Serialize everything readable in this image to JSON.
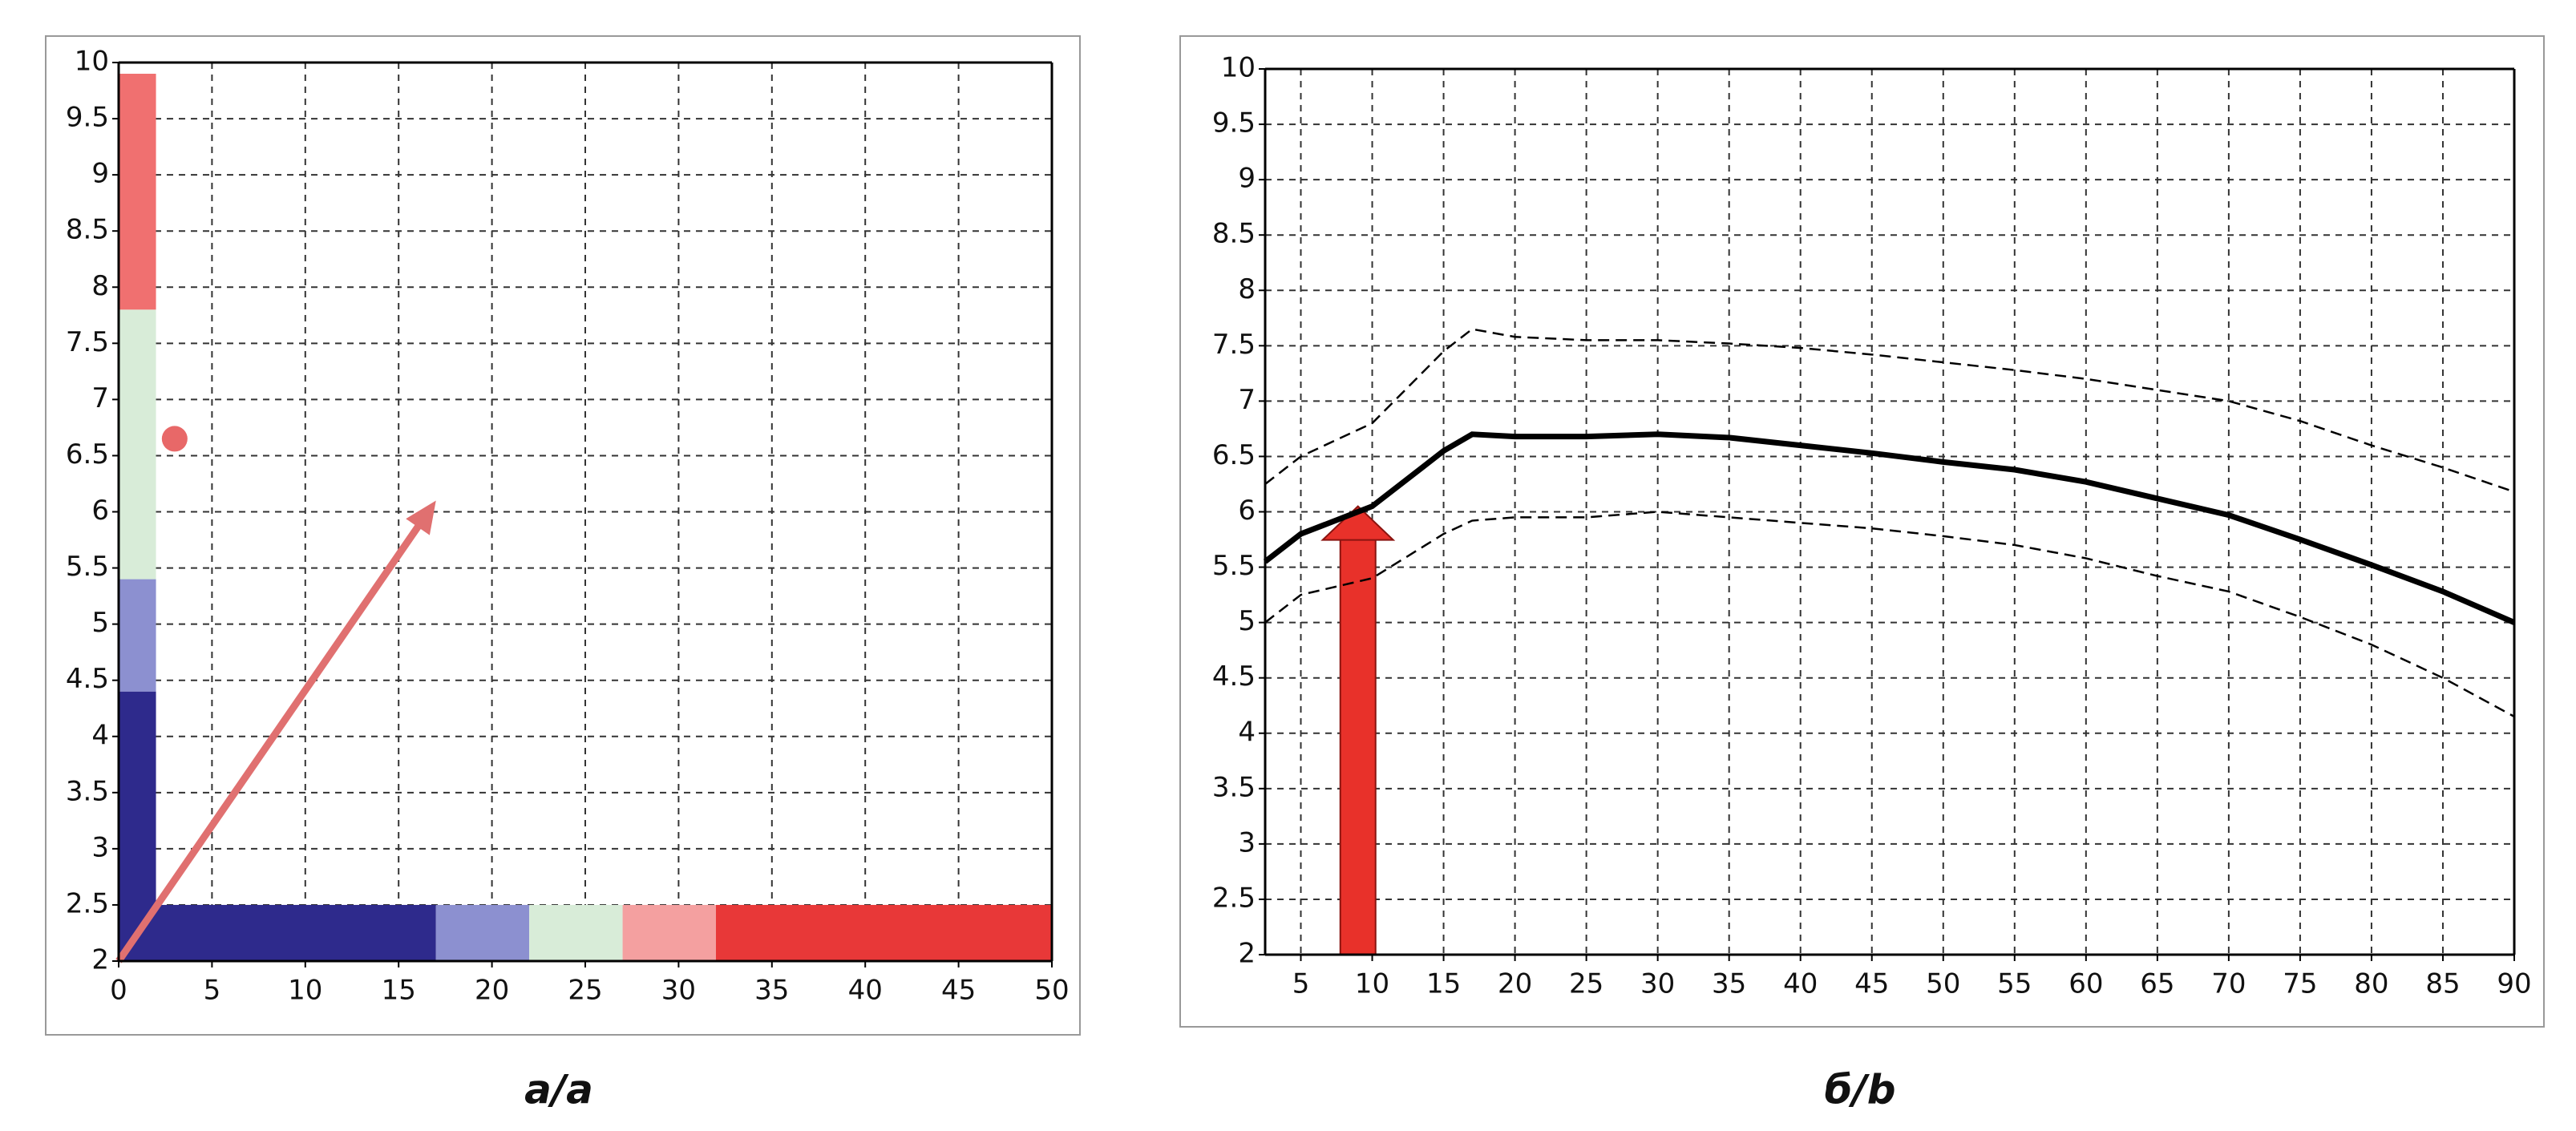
{
  "chart_data": [
    {
      "type": "range",
      "title": "а/a",
      "xlim": [
        0,
        50
      ],
      "xticks": [
        0,
        5,
        10,
        15,
        20,
        25,
        30,
        35,
        40,
        45,
        50
      ],
      "ylim": [
        2,
        10
      ],
      "yticks": [
        2,
        2.5,
        3,
        3.5,
        4,
        4.5,
        5,
        5.5,
        6,
        6.5,
        7,
        7.5,
        8,
        8.5,
        9,
        9.5,
        10
      ],
      "grid": true,
      "y_band_x": [
        0,
        2
      ],
      "y_bands": [
        {
          "color": "#2e2a8c",
          "values": [
            2,
            4.4
          ]
        },
        {
          "color": "#8c90d0",
          "values": [
            4.4,
            5.4
          ]
        },
        {
          "color": "#d8ecd8",
          "values": [
            5.4,
            7.8
          ]
        },
        {
          "color": "#f07070",
          "values": [
            7.8,
            9.9
          ]
        }
      ],
      "x_band_y": [
        2,
        2.5
      ],
      "x_bands": [
        {
          "color": "#2e2a8c",
          "values": [
            0,
            17
          ]
        },
        {
          "color": "#8c90d0",
          "values": [
            17,
            22
          ]
        },
        {
          "color": "#d8ecd8",
          "values": [
            22,
            27
          ]
        },
        {
          "color": "#f4a0a0",
          "values": [
            27,
            32
          ]
        },
        {
          "color": "#e83838",
          "values": [
            32,
            50
          ]
        }
      ],
      "arrow": {
        "x": [
          0,
          17
        ],
        "y": [
          2,
          6.1
        ],
        "color": "#e07070"
      },
      "point": {
        "x": 3,
        "y": 6.65,
        "color": "#e86868"
      }
    },
    {
      "type": "line",
      "title": "б/b",
      "xlim": [
        2.5,
        90
      ],
      "xticks": [
        5,
        10,
        15,
        20,
        25,
        30,
        35,
        40,
        45,
        50,
        55,
        60,
        65,
        70,
        75,
        80,
        85,
        90
      ],
      "ylim": [
        2,
        10
      ],
      "yticks": [
        2,
        2.5,
        3,
        3.5,
        4,
        4.5,
        5,
        5.5,
        6,
        6.5,
        7,
        7.5,
        8,
        8.5,
        9,
        9.5,
        10
      ],
      "grid": true,
      "x": [
        2.5,
        5,
        10,
        15,
        17,
        20,
        25,
        30,
        35,
        40,
        45,
        50,
        55,
        60,
        65,
        70,
        75,
        80,
        85,
        90
      ],
      "series": [
        {
          "color": "#000000",
          "style": "solid",
          "values": [
            5.55,
            5.8,
            6.05,
            6.55,
            6.7,
            6.68,
            6.68,
            6.7,
            6.67,
            6.6,
            6.53,
            6.45,
            6.38,
            6.27,
            6.12,
            5.97,
            5.75,
            5.52,
            5.28,
            5.0
          ]
        },
        {
          "color": "#000000",
          "style": "dashed",
          "values": [
            6.25,
            6.5,
            6.8,
            7.45,
            7.65,
            7.58,
            7.55,
            7.55,
            7.52,
            7.48,
            7.42,
            7.35,
            7.28,
            7.2,
            7.1,
            7.0,
            6.82,
            6.6,
            6.4,
            6.18
          ]
        },
        {
          "color": "#000000",
          "style": "dashed",
          "values": [
            5.0,
            5.25,
            5.4,
            5.8,
            5.92,
            5.95,
            5.95,
            6.0,
            5.95,
            5.9,
            5.85,
            5.78,
            5.7,
            5.58,
            5.42,
            5.28,
            5.05,
            4.8,
            4.5,
            4.15
          ]
        }
      ],
      "arrow": {
        "x": 9,
        "y": [
          2,
          6.05
        ],
        "color": "#e8312a"
      }
    }
  ]
}
